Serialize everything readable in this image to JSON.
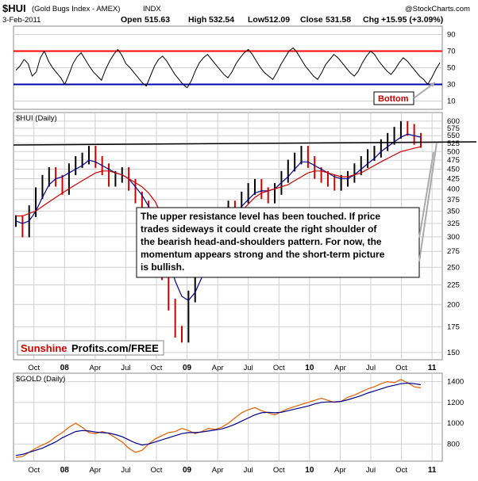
{
  "header": {
    "symbol": "$HUI",
    "description": "(Gold Bugs Index - AMEX)",
    "exchange": "INDX",
    "date": "3-Feb-2011",
    "open_label": "Open",
    "open": "515.63",
    "high_label": "High",
    "high": "532.54",
    "low_label": "Low",
    "low": "512.09",
    "close_label": "Close",
    "close": "531.58",
    "chg_label": "Chg",
    "chg": "+15.95 (+3.09%)",
    "copyright": "@StockCharts.com"
  },
  "annotations": {
    "bottom_label": "Bottom",
    "commentary_lines": [
      "The upper resistance level has been touched. If price",
      "trades sideways it could create the right shoulder of",
      "the bearish head-and-shoulders pattern. For now, the",
      "momentum appears strong and the short-term picture",
      "is bullish."
    ],
    "watermark_red": "Sunshine",
    "watermark_black": "Profits.com/FREE"
  },
  "colors": {
    "rsi_upper": "#ff0000",
    "rsi_lower": "#0000aa",
    "hui_price_up": "#000000",
    "hui_price_down": "#cc0000",
    "ma_short": "#00008b",
    "ma_long": "#cc0000",
    "gold_price": "#e06000",
    "gold_ma": "#00008b",
    "panel_border": "#888888",
    "grid": "#d0d0d0"
  },
  "chart_data": [
    {
      "type": "line",
      "title": "",
      "xlabel": "",
      "ylabel": "",
      "ylim": [
        0,
        100
      ],
      "yticks": [
        "90",
        "70",
        "50",
        "30",
        "10"
      ],
      "ytick_values": [
        90,
        70,
        50,
        30,
        10
      ],
      "reference_lines": [
        70,
        30
      ],
      "series": [
        {
          "values": [
            47,
            52,
            60,
            55,
            40,
            45,
            62,
            70,
            58,
            50,
            44,
            38,
            30,
            42,
            55,
            63,
            68,
            60,
            52,
            45,
            40,
            35,
            48,
            58,
            66,
            72,
            65,
            55,
            50,
            44,
            38,
            32,
            28,
            40,
            52,
            60,
            64,
            58,
            50,
            42,
            36,
            30,
            26,
            34,
            46,
            56,
            62,
            66,
            60,
            54,
            48,
            42,
            38,
            45,
            55,
            62,
            68,
            72,
            66,
            58,
            50,
            44,
            40,
            36,
            44,
            54,
            62,
            70,
            74,
            68,
            60,
            52,
            46,
            40,
            36,
            44,
            54,
            60,
            66,
            62,
            56,
            50,
            44,
            40,
            46,
            56,
            64,
            70,
            66,
            58,
            52,
            46,
            42,
            48,
            56,
            62,
            58,
            52,
            46,
            40,
            36,
            30,
            38,
            48,
            56
          ]
        }
      ]
    },
    {
      "type": "line",
      "title": "$HUI (Daily)",
      "xlabel": "",
      "ylabel": "",
      "scale": "log",
      "ylim": [
        145,
        620
      ],
      "yticks": [
        "600",
        "575",
        "550",
        "525",
        "500",
        "475",
        "450",
        "425",
        "400",
        "375",
        "350",
        "325",
        "300",
        "275",
        "250",
        "225",
        "200",
        "175",
        "150"
      ],
      "ytick_values": [
        600,
        575,
        550,
        525,
        500,
        475,
        450,
        425,
        400,
        375,
        350,
        325,
        300,
        275,
        250,
        225,
        200,
        175,
        150
      ],
      "xticks": [
        "Oct",
        "08",
        "Apr",
        "Jul",
        "Oct",
        "09",
        "Apr",
        "Jul",
        "Oct",
        "10",
        "Apr",
        "Jul",
        "Oct",
        "11"
      ],
      "x_months_start": "2007-08",
      "x_months_end": "2011-02",
      "resistance_line": [
        520,
        530
      ],
      "series": [
        {
          "name": "",
          "values": [
            330,
            310,
            350,
            390,
            420,
            440,
            420,
            400,
            450,
            470,
            480,
            500,
            470,
            450,
            420,
            430,
            440,
            410,
            380,
            360,
            330,
            300,
            240,
            200,
            170,
            165,
            210,
            250,
            270,
            260,
            290,
            330,
            360,
            350,
            380,
            400,
            410,
            390,
            380,
            400,
            430,
            460,
            480,
            500,
            470,
            440,
            430,
            420,
            410,
            420,
            430,
            450,
            470,
            490,
            500,
            520,
            540,
            560,
            580,
            570,
            540,
            530
          ]
        },
        {
          "name": "",
          "values": [
            330,
            325,
            330,
            350,
            380,
            410,
            425,
            430,
            440,
            450,
            460,
            475,
            470,
            460,
            450,
            440,
            435,
            425,
            405,
            385,
            360,
            335,
            300,
            265,
            230,
            210,
            205,
            215,
            235,
            255,
            275,
            300,
            330,
            345,
            360,
            375,
            390,
            395,
            395,
            400,
            415,
            430,
            450,
            470,
            470,
            460,
            450,
            440,
            430,
            425,
            425,
            435,
            450,
            465,
            480,
            500,
            515,
            530,
            545,
            555,
            550,
            545
          ]
        },
        {
          "name": "",
          "values": [
            340,
            340,
            345,
            350,
            360,
            370,
            380,
            390,
            400,
            410,
            420,
            430,
            440,
            445,
            445,
            440,
            435,
            425,
            415,
            405,
            390,
            370,
            340,
            310,
            285,
            265,
            255,
            250,
            255,
            265,
            280,
            300,
            320,
            335,
            350,
            365,
            380,
            390,
            395,
            400,
            405,
            410,
            420,
            430,
            440,
            445,
            445,
            440,
            435,
            430,
            430,
            435,
            440,
            450,
            460,
            470,
            480,
            490,
            500,
            505,
            510,
            515
          ]
        }
      ]
    },
    {
      "type": "line",
      "title": "$GOLD (Daily)",
      "xlabel": "",
      "ylabel": "",
      "ylim": [
        650,
        1450
      ],
      "yticks": [
        "1400",
        "1200",
        "1000",
        "800"
      ],
      "ytick_values": [
        1400,
        1200,
        1000,
        800
      ],
      "xticks": [
        "Oct",
        "08",
        "Apr",
        "Jul",
        "Oct",
        "09",
        "Apr",
        "Jul",
        "Oct",
        "10",
        "Apr",
        "Jul",
        "Oct",
        "11"
      ],
      "series": [
        {
          "name": "",
          "values": [
            670,
            680,
            720,
            760,
            790,
            820,
            870,
            910,
            960,
            1000,
            960,
            910,
            900,
            920,
            900,
            860,
            820,
            760,
            720,
            740,
            800,
            850,
            880,
            910,
            920,
            950,
            930,
            900,
            920,
            950,
            940,
            960,
            1000,
            1050,
            1100,
            1130,
            1150,
            1120,
            1100,
            1080,
            1110,
            1140,
            1160,
            1180,
            1200,
            1220,
            1240,
            1220,
            1200,
            1210,
            1250,
            1270,
            1300,
            1330,
            1350,
            1380,
            1400,
            1390,
            1420,
            1390,
            1350,
            1340
          ]
        },
        {
          "name": "",
          "values": [
            690,
            700,
            720,
            740,
            760,
            790,
            820,
            860,
            890,
            920,
            930,
            925,
            915,
            910,
            905,
            890,
            870,
            840,
            810,
            790,
            800,
            820,
            840,
            860,
            880,
            900,
            910,
            910,
            915,
            925,
            935,
            945,
            965,
            990,
            1020,
            1050,
            1080,
            1100,
            1105,
            1100,
            1105,
            1120,
            1135,
            1150,
            1165,
            1185,
            1200,
            1205,
            1205,
            1210,
            1225,
            1245,
            1265,
            1290,
            1310,
            1330,
            1350,
            1365,
            1380,
            1385,
            1380,
            1370
          ]
        }
      ]
    }
  ]
}
